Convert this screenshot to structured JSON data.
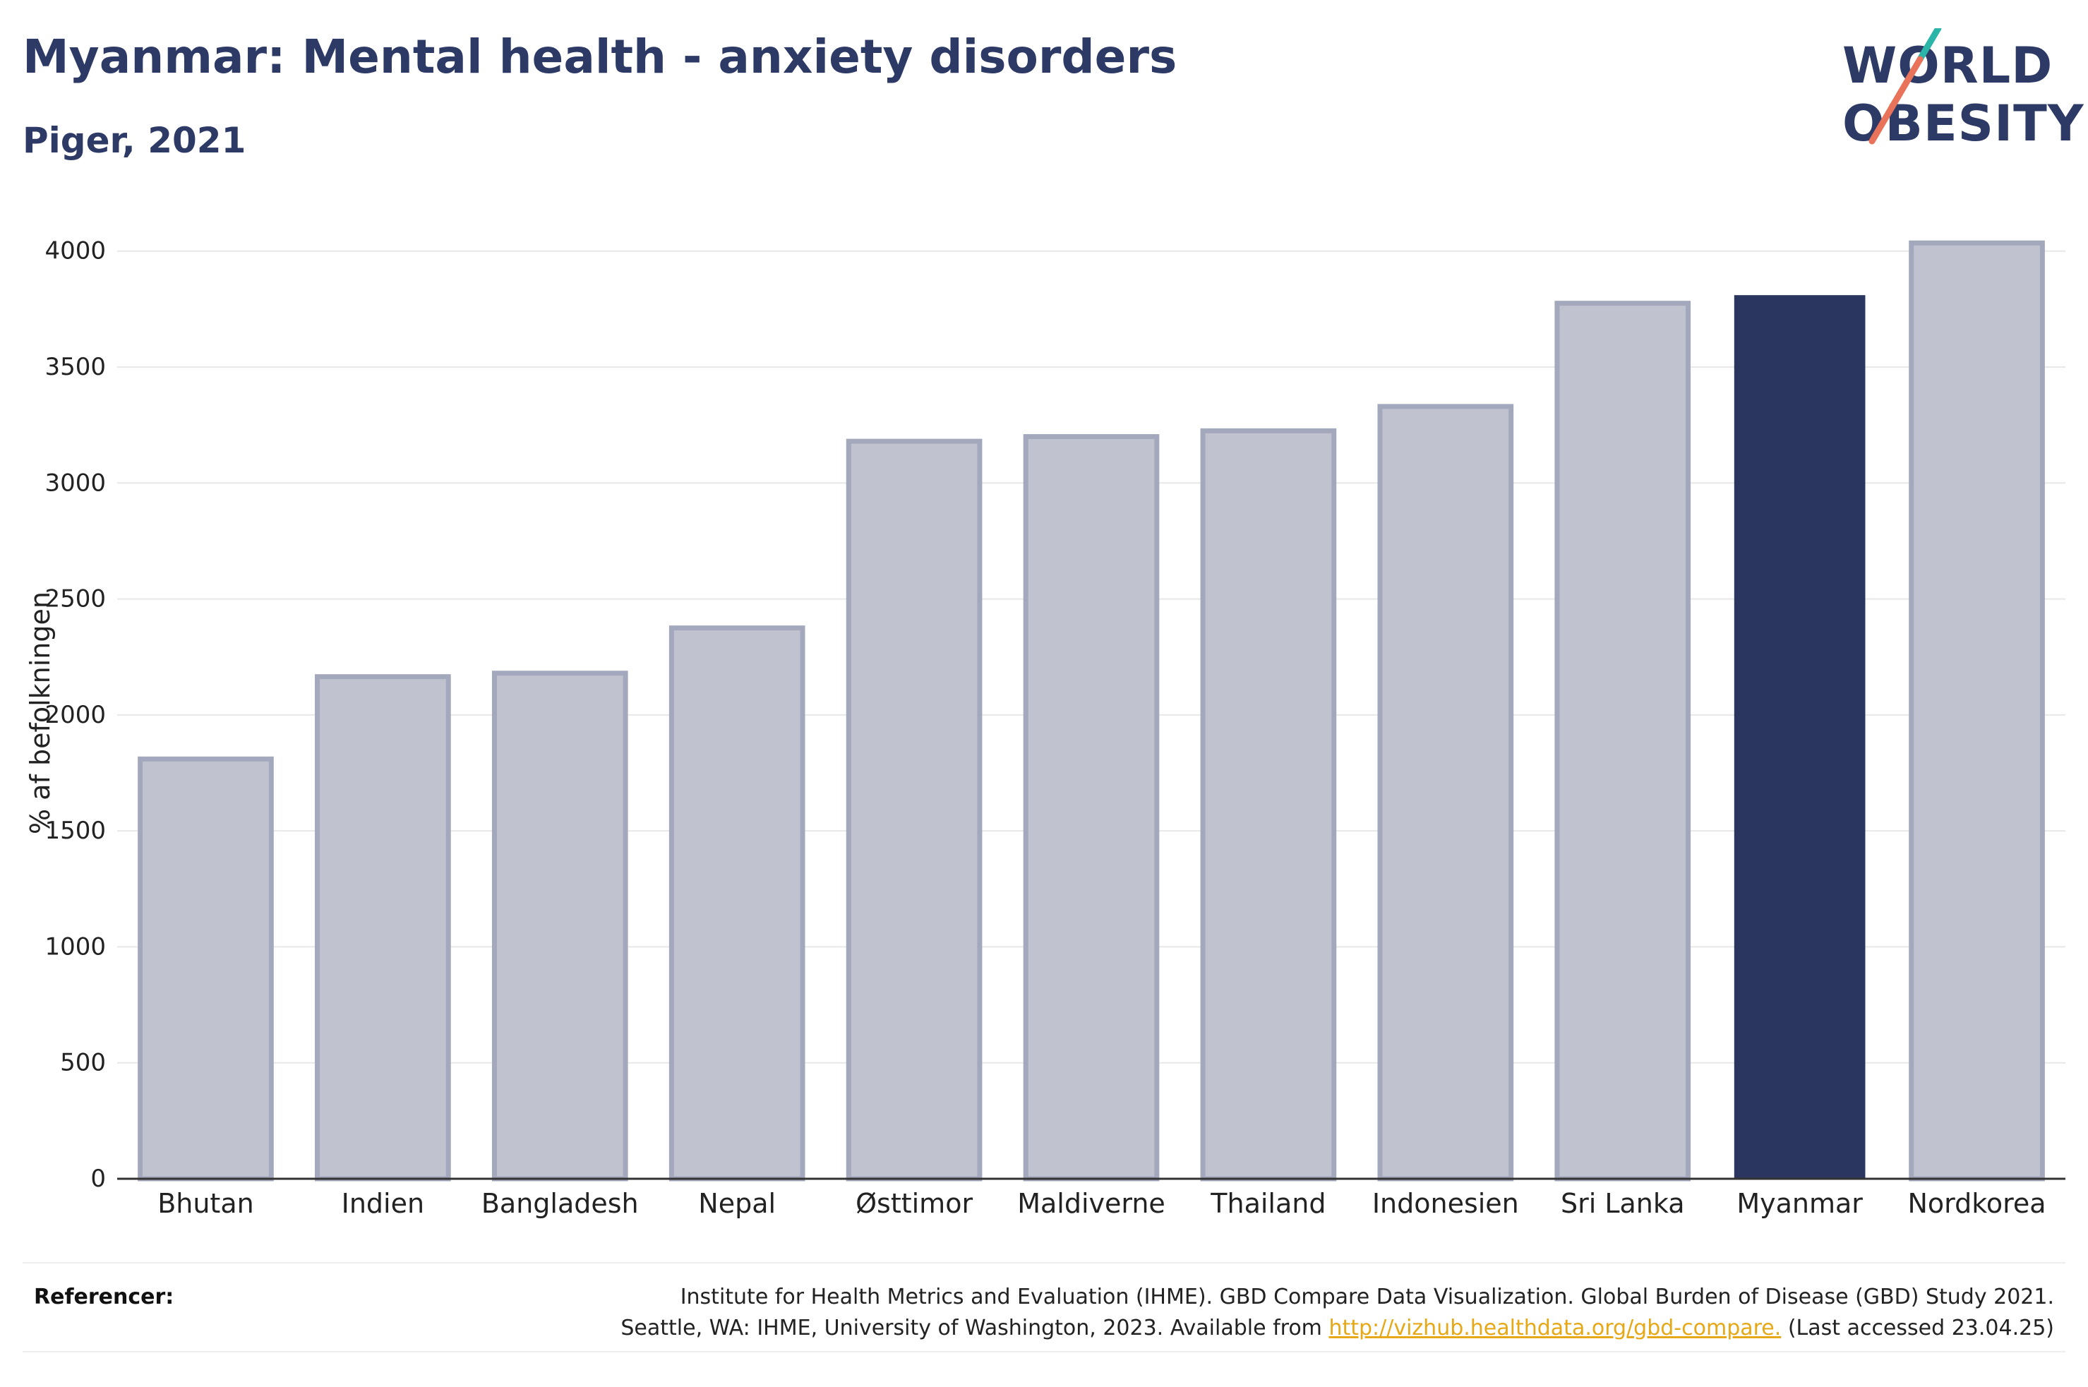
{
  "header": {
    "title": "Myanmar: Mental health - anxiety disorders",
    "subtitle": "Piger, 2021"
  },
  "logo": {
    "line1": "WORLD",
    "line2": "OBESITY",
    "accent_colors": [
      "#2bb5a8",
      "#e8735a"
    ]
  },
  "chart_data": {
    "type": "bar",
    "title": "Myanmar: Mental health - anxiety disorders",
    "subtitle": "Piger, 2021",
    "xlabel": "",
    "ylabel": "% af befolkningen",
    "ylim": [
      0,
      4200
    ],
    "yticks": [
      0,
      500,
      1000,
      1500,
      2000,
      2500,
      3000,
      3500,
      4000
    ],
    "grid": true,
    "categories": [
      "Bhutan",
      "Indien",
      "Bangladesh",
      "Nepal",
      "Østtimor",
      "Maldiverne",
      "Thailand",
      "Indonesien",
      "Sri Lanka",
      "Myanmar",
      "Nordkorea"
    ],
    "values": [
      1810,
      2165,
      2180,
      2375,
      3180,
      3200,
      3225,
      3330,
      3775,
      3810,
      4035
    ],
    "highlight": "Myanmar",
    "colors": {
      "bar": "#c0c3cf",
      "bar_border": "#a3a8bc",
      "highlight": "#2a3560",
      "grid": "#e8e8e8",
      "axis": "#333333"
    }
  },
  "references": {
    "label": "Referencer:",
    "line1": "Institute for Health Metrics and Evaluation (IHME). GBD Compare Data Visualization. Global Burden of Disease (GBD) Study 2021.",
    "line2_prefix": "Seattle, WA: IHME, University of Washington, 2023. Available from ",
    "link_text": "http://vizhub.healthdata.org/gbd-compare.",
    "line2_suffix": " (Last accessed 23.04.25)"
  }
}
